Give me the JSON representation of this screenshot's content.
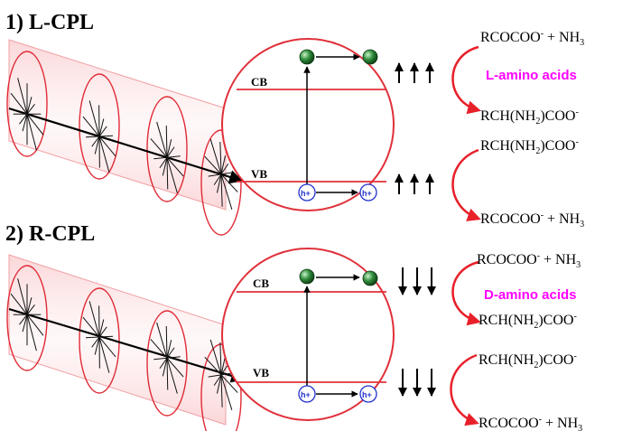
{
  "panels": [
    {
      "header": "1) L-CPL",
      "band_cb": "CB",
      "band_vb": "VB",
      "hole_label": "h+",
      "spin_direction": "up",
      "reactions": {
        "top_reactant": "RCOCOO- + NH3",
        "top_product": "RCH(NH2)COO-",
        "enantiomer_label": "L-amino acids",
        "bottom_reactant": "RCH(NH2)COO-",
        "bottom_product": "RCOCOO- + NH3"
      }
    },
    {
      "header": "2) R-CPL",
      "band_cb": "CB",
      "band_vb": "VB",
      "hole_label": "h+",
      "spin_direction": "down",
      "reactions": {
        "top_reactant": "RCOCOO- + NH3",
        "top_product": "RCH(NH2)COO-",
        "enantiomer_label": "D-amino acids",
        "bottom_reactant": "RCH(NH2)COO-",
        "bottom_product": "RCOCOO- + NH3"
      }
    }
  ],
  "colors": {
    "accent_red": "#e8202a",
    "label_magenta": "#ff00ff",
    "electron_green": "#2e8b3a",
    "hole_blue": "#2233cc",
    "band_line": "#e0303a"
  },
  "icons": {
    "light_beam": "circularly-polarized-light-helix",
    "electron": "electron-sphere",
    "hole": "hole-circle",
    "spin": "spin-arrow",
    "reaction": "curved-reaction-arrow"
  }
}
